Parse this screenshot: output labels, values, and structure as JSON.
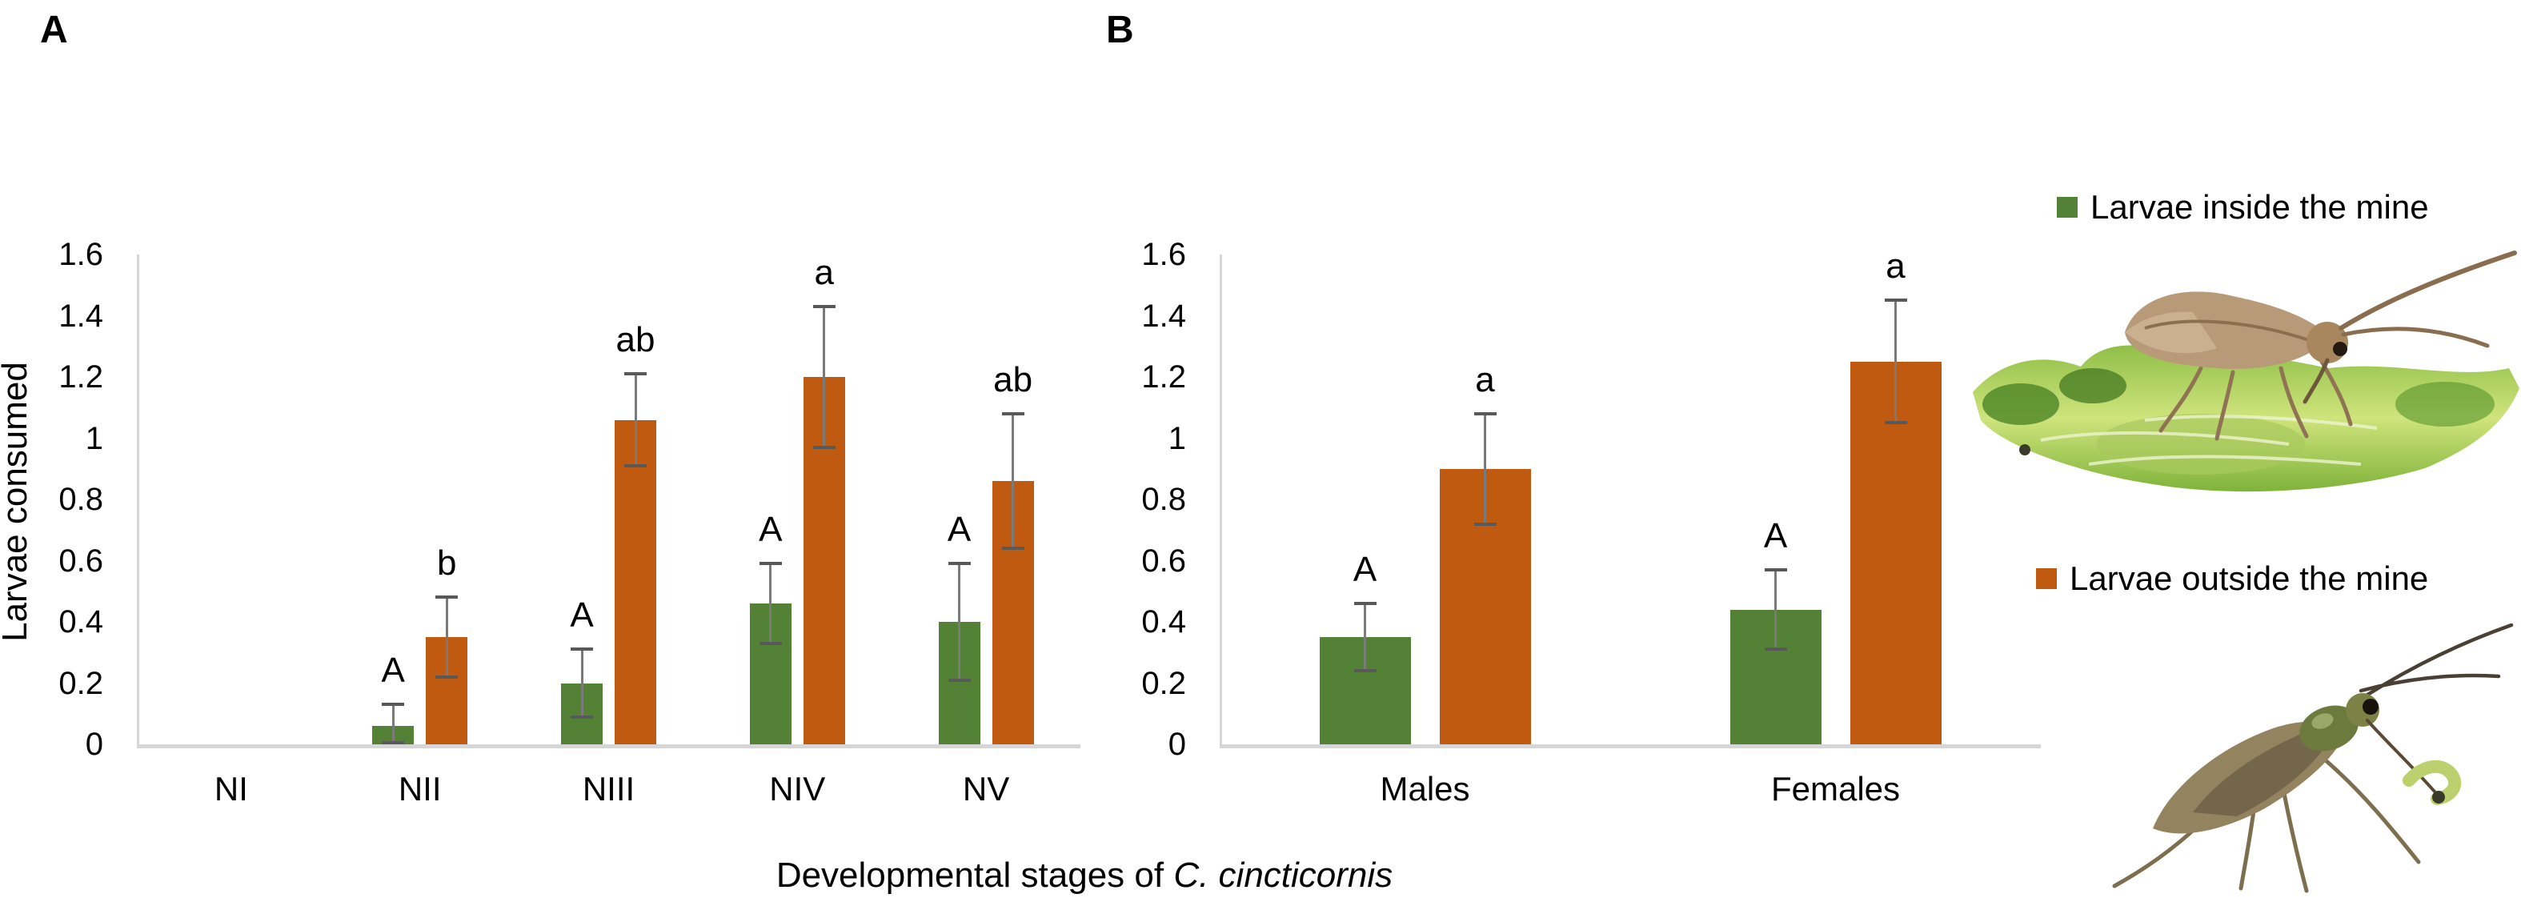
{
  "panels": [
    {
      "label": "A"
    },
    {
      "label": "B"
    }
  ],
  "chart_data": [
    {
      "type": "bar",
      "panel": "A",
      "title": "",
      "categories": [
        "NI",
        "NII",
        "NIII",
        "NIV",
        "NV"
      ],
      "series": [
        {
          "name": "Larvae inside the mine",
          "color": "#538135",
          "values": [
            0,
            0.06,
            0.2,
            0.46,
            0.4
          ],
          "errors": [
            0,
            0.07,
            0.11,
            0.13,
            0.19
          ],
          "letters": [
            "",
            "A",
            "A",
            "A",
            "A"
          ]
        },
        {
          "name": "Larvae outside the mine",
          "color": "#C05A11",
          "values": [
            0,
            0.35,
            1.06,
            1.2,
            0.86
          ],
          "errors": [
            0,
            0.13,
            0.15,
            0.23,
            0.22
          ],
          "letters": [
            "",
            "b",
            "ab",
            "a",
            "ab"
          ]
        }
      ],
      "ylabel": "Larvae consumed",
      "ylim": [
        0,
        1.6
      ],
      "ytick_step": 0.2,
      "yticks": [
        "0",
        "0.2",
        "0.4",
        "0.6",
        "0.8",
        "1",
        "1.2",
        "1.4",
        "1.6"
      ],
      "grid": "off",
      "legend_position": "right"
    },
    {
      "type": "bar",
      "panel": "B",
      "title": "",
      "categories": [
        "Males",
        "Females"
      ],
      "series": [
        {
          "name": "Larvae inside the mine",
          "color": "#538135",
          "values": [
            0.35,
            0.44
          ],
          "errors": [
            0.11,
            0.13
          ],
          "letters": [
            "A",
            "A"
          ]
        },
        {
          "name": "Larvae outside the mine",
          "color": "#C05A11",
          "values": [
            0.9,
            1.25
          ],
          "errors": [
            0.18,
            0.2
          ],
          "letters": [
            "a",
            "a"
          ]
        }
      ],
      "ylabel": "",
      "ylim": [
        0,
        1.6
      ],
      "ytick_step": 0.2,
      "yticks": [
        "0",
        "0.2",
        "0.4",
        "0.6",
        "0.8",
        "1",
        "1.2",
        "1.4",
        "1.6"
      ],
      "grid": "off"
    }
  ],
  "xaxis": {
    "title_prefix": "Developmental stages of ",
    "title_species": "C. cincticornis"
  },
  "legend": {
    "items": [
      {
        "label": "Larvae inside the mine",
        "color_key": "green"
      },
      {
        "label": "Larvae outside the mine",
        "color_key": "orange"
      }
    ]
  },
  "colors": {
    "green": "#538135",
    "orange": "#C05A11",
    "error_line": "#7a7a7a",
    "error_cap": "#595959",
    "axis_line": "#d6d6d6",
    "text": "#000000"
  },
  "images": [
    {
      "name": "predator-on-leaf-mine-photo"
    },
    {
      "name": "predator-holding-larva-photo"
    }
  ]
}
